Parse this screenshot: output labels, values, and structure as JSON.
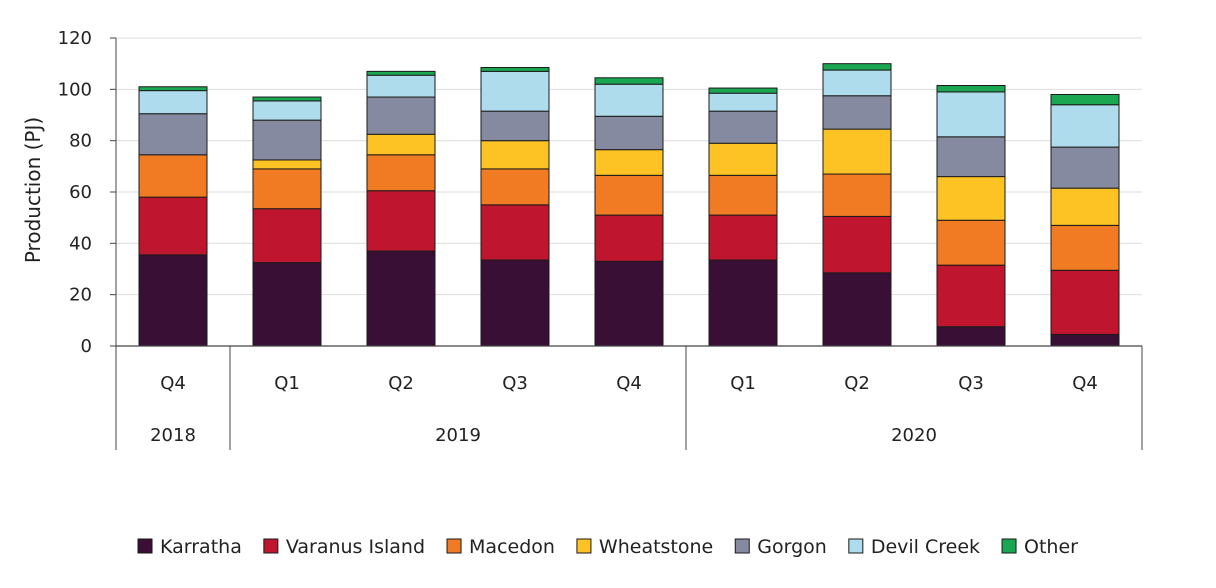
{
  "chart_data": {
    "type": "bar",
    "stacked": true,
    "categories": [
      "Q4",
      "Q1",
      "Q2",
      "Q3",
      "Q4",
      "Q1",
      "Q2",
      "Q3",
      "Q4"
    ],
    "groups": [
      {
        "label": "2018",
        "count": 1
      },
      {
        "label": "2019",
        "count": 4
      },
      {
        "label": "2020",
        "count": 4
      }
    ],
    "series": [
      {
        "name": "Karratha",
        "color": "#3a0f36",
        "values": [
          35.5,
          32.5,
          37,
          33.5,
          33,
          33.5,
          28.5,
          7.5,
          4.5
        ]
      },
      {
        "name": "Varanus Island",
        "color": "#c0152e",
        "values": [
          22.5,
          21,
          23.5,
          21.5,
          18,
          17.5,
          22,
          24,
          25
        ]
      },
      {
        "name": "Macedon",
        "color": "#f07b23",
        "values": [
          16.5,
          15.5,
          14,
          14,
          15.5,
          15.5,
          16.5,
          17.5,
          17.5
        ]
      },
      {
        "name": "Wheatstone",
        "color": "#fdc325",
        "values": [
          0,
          3.5,
          8,
          11,
          10,
          12.5,
          17.5,
          17,
          14.5
        ]
      },
      {
        "name": "Gorgon",
        "color": "#868aa0",
        "values": [
          16,
          15.5,
          14.5,
          11.5,
          13,
          12.5,
          13,
          15.5,
          16
        ]
      },
      {
        "name": "Devil Creek",
        "color": "#aedcec",
        "values": [
          9,
          7.5,
          8.5,
          15.5,
          12.5,
          7,
          10,
          17.5,
          16.5
        ]
      },
      {
        "name": "Other",
        "color": "#1ba652",
        "values": [
          1.5,
          1.5,
          1.5,
          1.5,
          2.5,
          2,
          2.5,
          2.5,
          4
        ]
      }
    ],
    "title": "",
    "xlabel": "",
    "ylabel": "Production (PJ)",
    "ylim": [
      0,
      120
    ],
    "yticks": [
      0,
      20,
      40,
      60,
      80,
      100,
      120
    ],
    "grid": true,
    "legend": "bottom"
  }
}
